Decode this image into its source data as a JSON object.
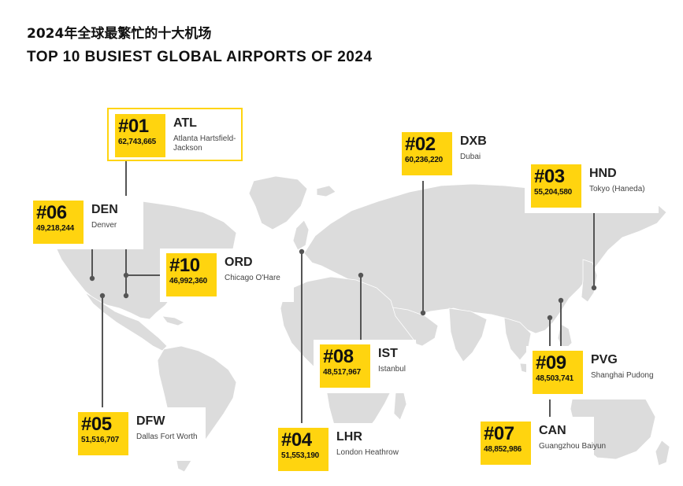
{
  "title_cn": "2024年全球最繁忙的十大机场",
  "title_en": "TOP 10 BUSIEST GLOBAL AIRPORTS OF 2024",
  "colors": {
    "accent": "#ffd40f",
    "land": "#dcdcdc",
    "connector": "#555555"
  },
  "airports": [
    {
      "rank": "#01",
      "code": "ATL",
      "passengers": "62,743,665",
      "name": "Atlanta Hartsfield-Jackson"
    },
    {
      "rank": "#02",
      "code": "DXB",
      "passengers": "60,236,220",
      "name": "Dubai"
    },
    {
      "rank": "#03",
      "code": "HND",
      "passengers": "55,204,580",
      "name": "Tokyo (Haneda)"
    },
    {
      "rank": "#04",
      "code": "LHR",
      "passengers": "51,553,190",
      "name": "London Heathrow"
    },
    {
      "rank": "#05",
      "code": "DFW",
      "passengers": "51,516,707",
      "name": "Dallas Fort Worth"
    },
    {
      "rank": "#06",
      "code": "DEN",
      "passengers": "49,218,244",
      "name": "Denver"
    },
    {
      "rank": "#07",
      "code": "CAN",
      "passengers": "48,852,986",
      "name": "Guangzhou Baiyun"
    },
    {
      "rank": "#08",
      "code": "IST",
      "passengers": "48,517,967",
      "name": "Istanbul"
    },
    {
      "rank": "#09",
      "code": "PVG",
      "passengers": "48,503,741",
      "name": "Shanghai Pudong"
    },
    {
      "rank": "#10",
      "code": "ORD",
      "passengers": "46,992,360",
      "name": "Chicago O'Hare"
    }
  ]
}
